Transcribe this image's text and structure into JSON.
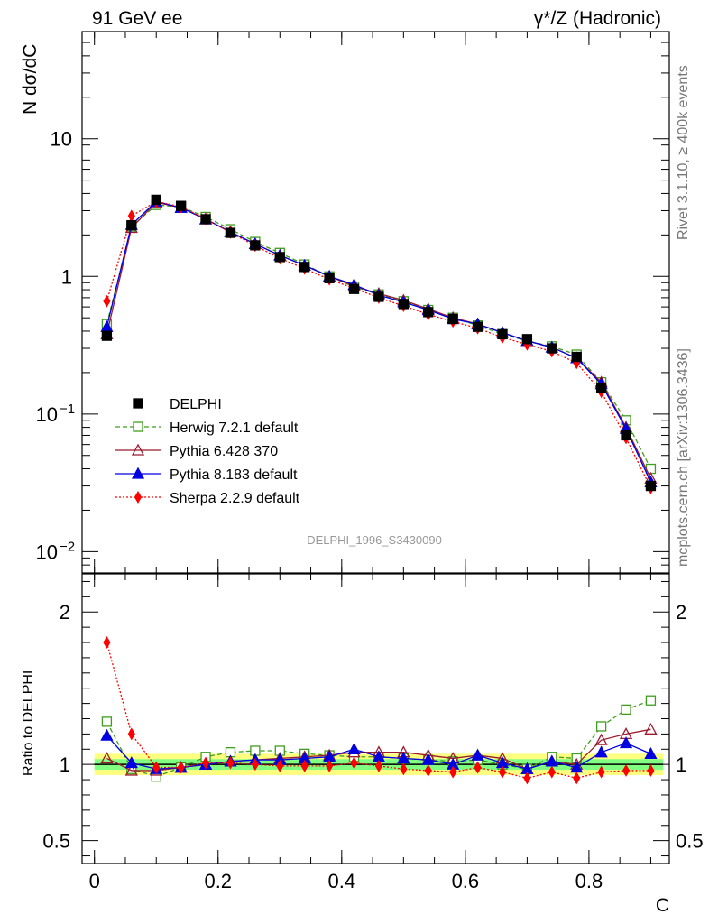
{
  "header": {
    "left_title": "91 GeV ee",
    "right_title": "γ*/Z (Hadronic)"
  },
  "side_labels": {
    "rivet": "Rivet 3.1.10, ≥ 400k events",
    "mcplots": "mcplots.cern.ch [arXiv:1306.3436]"
  },
  "watermark": "DELPHI_1996_S3430090",
  "colors": {
    "data": "#000000",
    "herwig": "#3f9e1d",
    "pythia6": "#9b1b2f",
    "pythia8": "#0000e0",
    "sherpa": "#ff0000",
    "band_outer": "#ffff80",
    "band_inner": "#80ff80"
  },
  "chart_data": [
    {
      "type": "line",
      "title": "91 GeV ee",
      "ylabel": "N dσ/dC",
      "xlabel": "C",
      "yscale": "log",
      "ylim": [
        0.007,
        60
      ],
      "xlim": [
        -0.02,
        0.93
      ],
      "y_ticks": [
        {
          "v": 10,
          "label": "10"
        },
        {
          "v": 1,
          "label": "1"
        },
        {
          "v": 0.1,
          "label": "10",
          "sup": "−1"
        },
        {
          "v": 0.01,
          "label": "10",
          "sup": "−2"
        }
      ],
      "x": [
        0.02,
        0.06,
        0.1,
        0.14,
        0.18,
        0.22,
        0.26,
        0.3,
        0.34,
        0.38,
        0.42,
        0.46,
        0.5,
        0.54,
        0.58,
        0.62,
        0.66,
        0.7,
        0.74,
        0.78,
        0.82,
        0.86,
        0.9
      ],
      "series": [
        {
          "name": "DELPHI",
          "key": "data",
          "marker": "square-filled",
          "style": "none",
          "values": [
            0.37,
            2.35,
            3.6,
            3.25,
            2.6,
            2.07,
            1.68,
            1.38,
            1.17,
            0.97,
            0.81,
            0.71,
            0.63,
            0.55,
            0.49,
            0.43,
            0.38,
            0.35,
            0.3,
            0.26,
            0.155,
            0.07,
            0.03
          ]
        },
        {
          "name": "Herwig 7.2.1 default",
          "key": "herwig",
          "marker": "square-open",
          "style": "dashed",
          "values": [
            0.45,
            2.3,
            3.3,
            3.2,
            2.7,
            2.2,
            1.78,
            1.48,
            1.22,
            1.0,
            0.84,
            0.74,
            0.66,
            0.57,
            0.5,
            0.44,
            0.38,
            0.34,
            0.31,
            0.27,
            0.17,
            0.09,
            0.04
          ]
        },
        {
          "name": "Pythia 6.428 370",
          "key": "pythia6",
          "marker": "triangle-open",
          "style": "solid",
          "values": [
            0.38,
            2.25,
            3.45,
            3.15,
            2.6,
            2.1,
            1.72,
            1.42,
            1.2,
            1.0,
            0.85,
            0.75,
            0.67,
            0.58,
            0.5,
            0.45,
            0.39,
            0.34,
            0.305,
            0.255,
            0.17,
            0.08,
            0.034
          ]
        },
        {
          "name": "Pythia 8.183 default",
          "key": "pythia8",
          "marker": "triangle-filled",
          "style": "solid",
          "values": [
            0.43,
            2.37,
            3.5,
            3.15,
            2.6,
            2.1,
            1.72,
            1.42,
            1.2,
            1.0,
            0.87,
            0.73,
            0.65,
            0.57,
            0.49,
            0.45,
            0.39,
            0.34,
            0.305,
            0.255,
            0.165,
            0.078,
            0.032
          ]
        },
        {
          "name": "Sherpa 2.2.9 default",
          "key": "sherpa",
          "marker": "diamond-filled",
          "style": "dotted",
          "values": [
            0.66,
            2.75,
            3.5,
            3.2,
            2.62,
            2.08,
            1.67,
            1.35,
            1.14,
            0.95,
            0.82,
            0.7,
            0.61,
            0.53,
            0.47,
            0.42,
            0.36,
            0.32,
            0.285,
            0.235,
            0.145,
            0.067,
            0.029
          ]
        }
      ]
    },
    {
      "type": "line",
      "ylabel": "Ratio to DELPHI",
      "xlabel": "C",
      "ylim": [
        0.35,
        2.25
      ],
      "xlim": [
        -0.02,
        0.93
      ],
      "y_ticks": [
        {
          "v": 2,
          "label": "2"
        },
        {
          "v": 1,
          "label": "1"
        },
        {
          "v": 0.5,
          "label": "0.5"
        }
      ],
      "x_ticks": [
        {
          "v": 0,
          "label": "0"
        },
        {
          "v": 0.2,
          "label": "0.2"
        },
        {
          "v": 0.4,
          "label": "0.4"
        },
        {
          "v": 0.6,
          "label": "0.6"
        },
        {
          "v": 0.8,
          "label": "0.8"
        }
      ],
      "band": {
        "outer": 0.07,
        "inner": 0.035
      },
      "x": [
        0.02,
        0.06,
        0.1,
        0.14,
        0.18,
        0.22,
        0.26,
        0.3,
        0.34,
        0.38,
        0.42,
        0.46,
        0.5,
        0.54,
        0.58,
        0.62,
        0.66,
        0.7,
        0.74,
        0.78,
        0.82,
        0.86,
        0.9
      ],
      "series": [
        {
          "name": "Herwig 7.2.1 default",
          "key": "herwig",
          "marker": "square-open",
          "style": "dashed",
          "values": [
            1.28,
            0.97,
            0.92,
            0.98,
            1.05,
            1.08,
            1.09,
            1.09,
            1.07,
            1.06,
            1.05,
            1.05,
            1.04,
            1.03,
            1.02,
            1.03,
            1.0,
            0.97,
            1.05,
            1.04,
            1.25,
            1.36,
            1.42
          ]
        },
        {
          "name": "Pythia 6.428 370",
          "key": "pythia6",
          "marker": "triangle-open",
          "style": "solid",
          "values": [
            1.04,
            0.96,
            0.96,
            0.98,
            1.0,
            1.02,
            1.03,
            1.04,
            1.05,
            1.06,
            1.08,
            1.08,
            1.08,
            1.06,
            1.04,
            1.06,
            1.04,
            0.97,
            1.02,
            1.0,
            1.16,
            1.2,
            1.23
          ]
        },
        {
          "name": "Pythia 8.183 default",
          "key": "pythia8",
          "marker": "triangle-filled",
          "style": "solid",
          "values": [
            1.19,
            1.01,
            0.97,
            0.98,
            1.0,
            1.02,
            1.03,
            1.03,
            1.04,
            1.05,
            1.1,
            1.05,
            1.04,
            1.03,
            1.0,
            1.06,
            1.01,
            0.97,
            1.02,
            0.98,
            1.08,
            1.14,
            1.07
          ]
        },
        {
          "name": "Sherpa 2.2.9 default",
          "key": "sherpa",
          "marker": "diamond-filled",
          "style": "dotted",
          "values": [
            1.8,
            1.2,
            0.98,
            0.98,
            1.01,
            1.01,
            1.0,
            0.99,
            0.99,
            0.99,
            1.01,
            0.99,
            0.97,
            0.96,
            0.95,
            0.98,
            0.95,
            0.91,
            0.95,
            0.91,
            0.95,
            0.96,
            0.96
          ]
        }
      ]
    }
  ]
}
